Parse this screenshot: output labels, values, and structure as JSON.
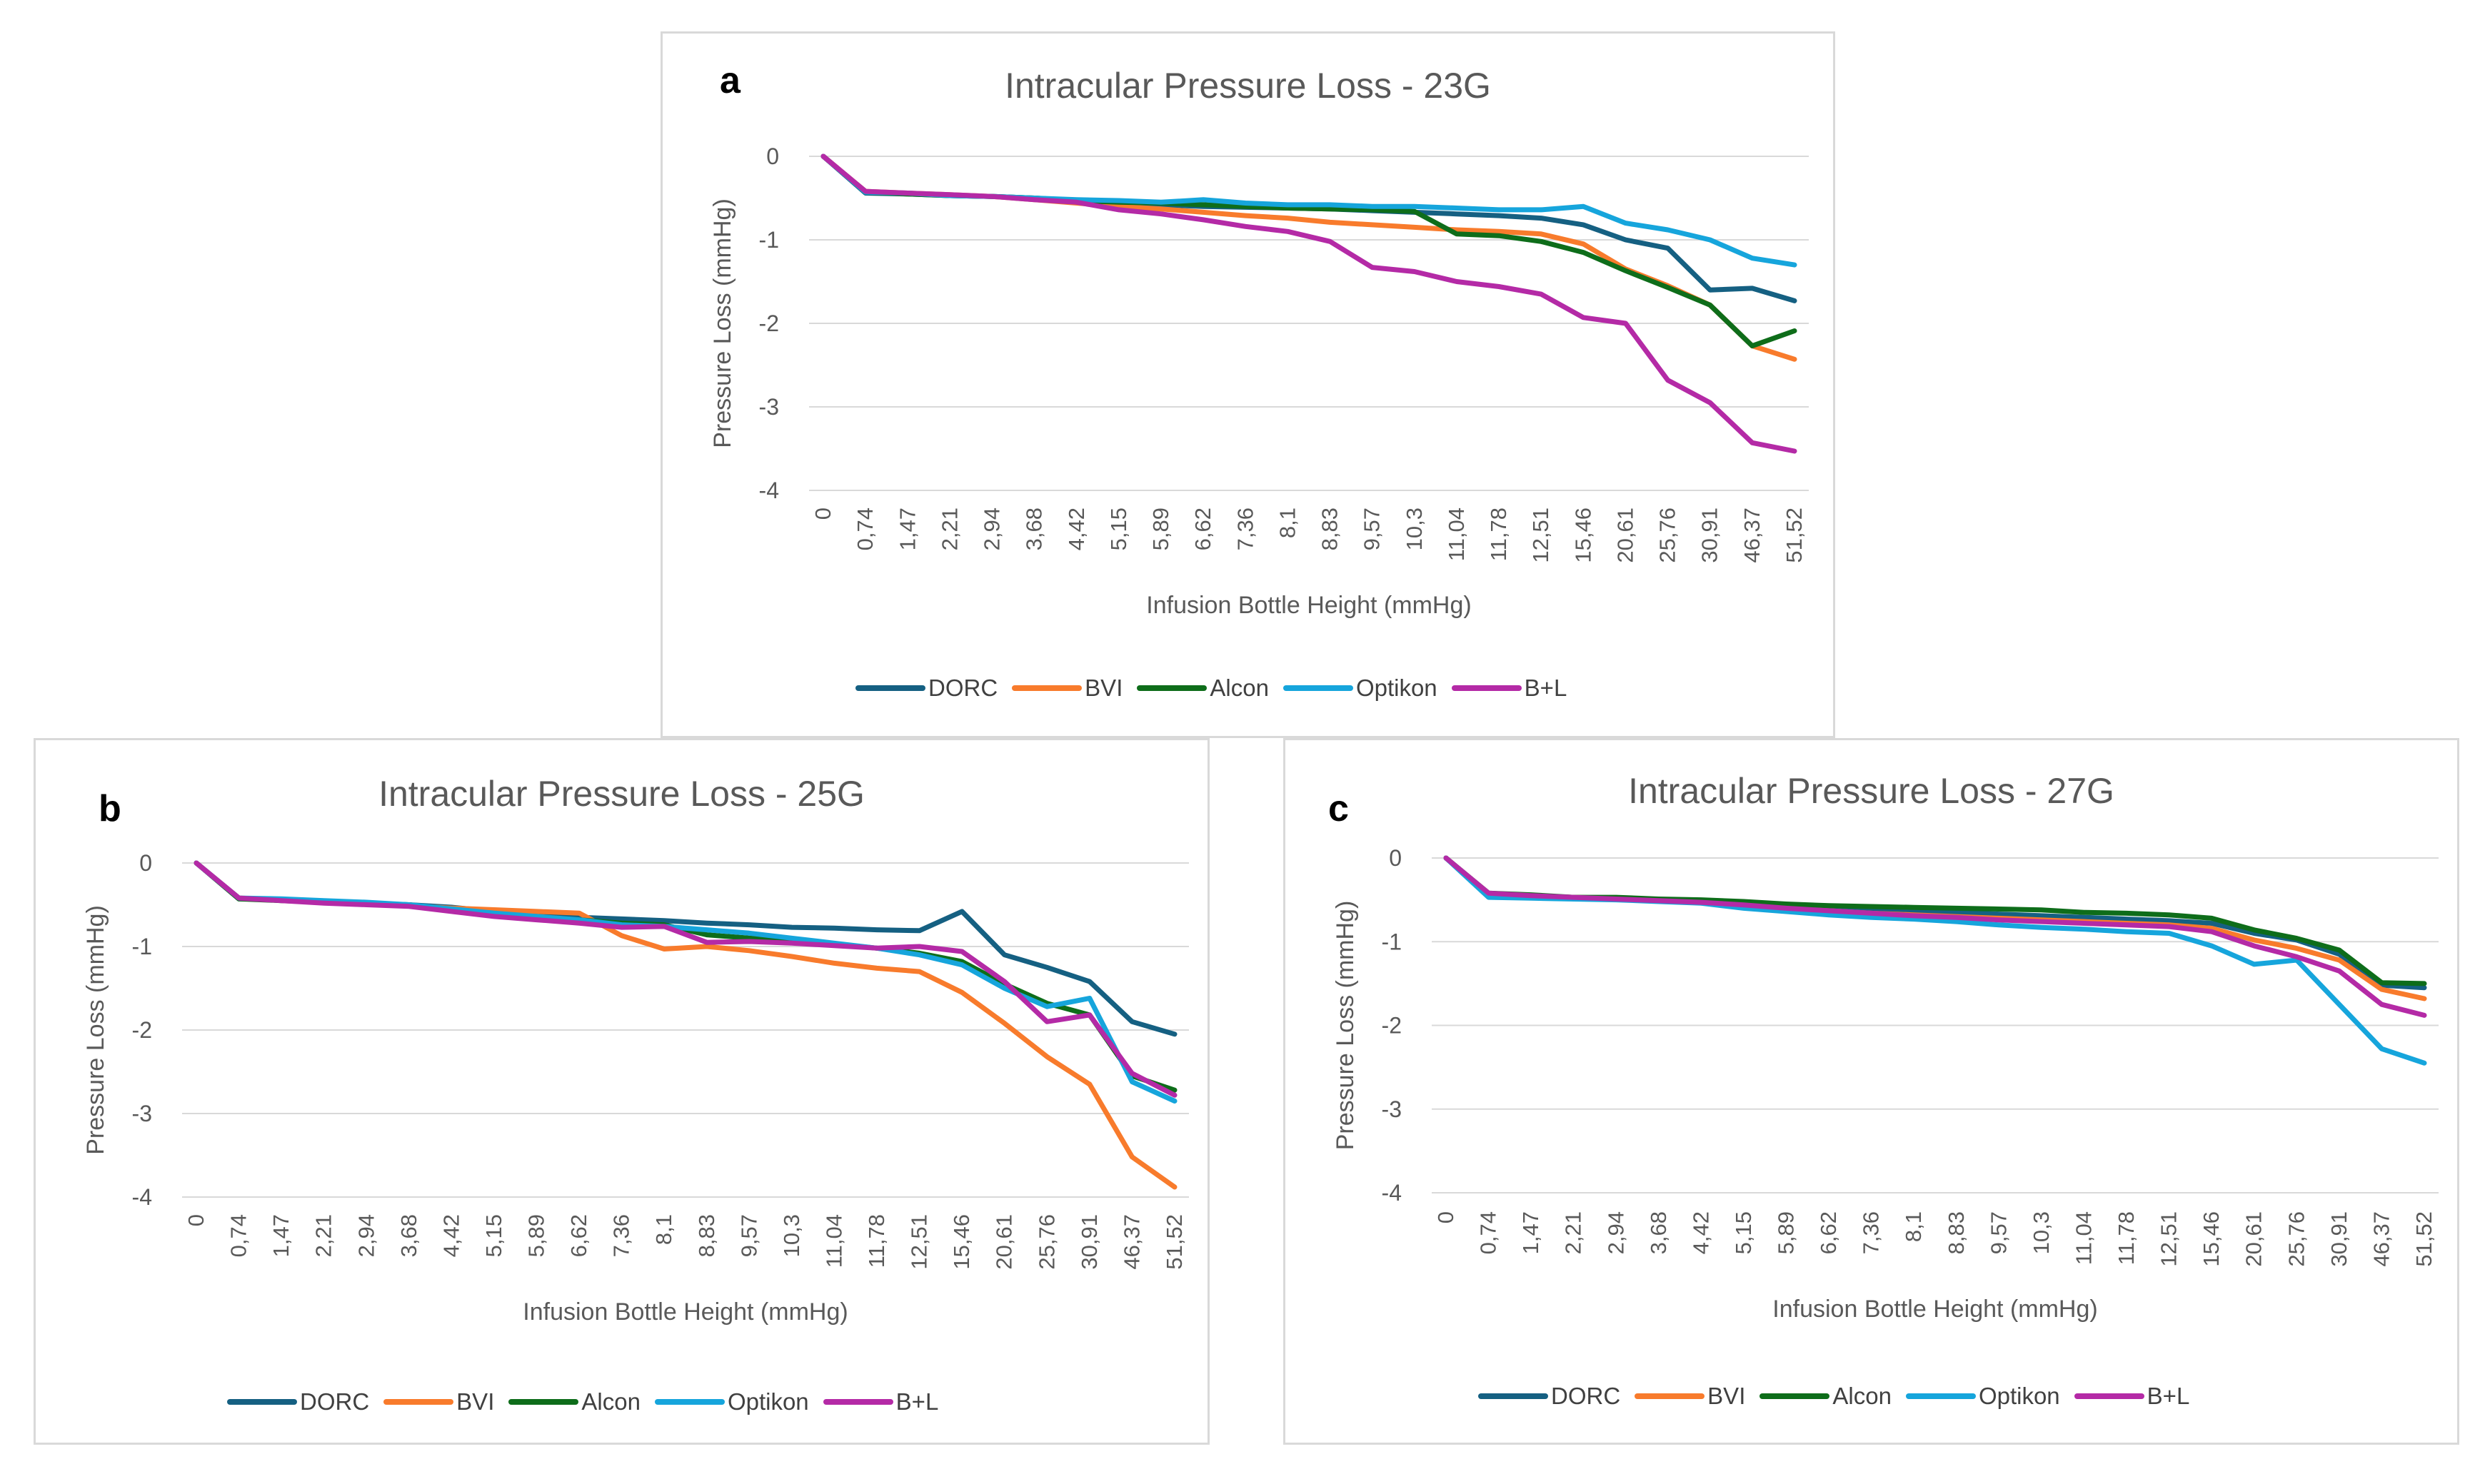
{
  "colors": {
    "DORC": "#156082",
    "BVI": "#f87b2c",
    "Alcon": "#0e6d1a",
    "Optikon": "#16a5dc",
    "B+L": "#b42aa6",
    "grid": "#d9d9d9",
    "axis_text": "#595959"
  },
  "chart_data": [
    {
      "id": "a",
      "type": "line",
      "panel_label": "a",
      "title": "Intracular Pressure Loss - 23G",
      "xlabel": "Infusion Bottle Height (mmHg)",
      "ylabel": "Pressure Loss (mmHg)",
      "ylim": [
        -4,
        0
      ],
      "yticks": [
        0,
        -1,
        -2,
        -3,
        -4
      ],
      "grid": true,
      "legend_position": "bottom",
      "categories": [
        "0",
        "0,74",
        "1,47",
        "2,21",
        "2,94",
        "3,68",
        "4,42",
        "5,15",
        "5,89",
        "6,62",
        "7,36",
        "8,1",
        "8,83",
        "9,57",
        "10,3",
        "11,04",
        "11,78",
        "12,51",
        "15,46",
        "20,61",
        "25,76",
        "30,91",
        "46,37",
        "51,52"
      ],
      "series": [
        {
          "name": "DORC",
          "values": [
            0,
            -0.44,
            -0.45,
            -0.47,
            -0.48,
            -0.5,
            -0.53,
            -0.55,
            -0.58,
            -0.6,
            -0.61,
            -0.62,
            -0.63,
            -0.65,
            -0.67,
            -0.69,
            -0.71,
            -0.74,
            -0.82,
            -1.0,
            -1.1,
            -1.6,
            -1.58,
            -1.73
          ]
        },
        {
          "name": "BVI",
          "values": [
            0,
            -0.42,
            -0.44,
            -0.46,
            -0.48,
            -0.52,
            -0.56,
            -0.6,
            -0.63,
            -0.67,
            -0.71,
            -0.74,
            -0.79,
            -0.82,
            -0.85,
            -0.88,
            -0.9,
            -0.93,
            -1.05,
            -1.35,
            -1.55,
            -1.78,
            -2.27,
            -2.43
          ]
        },
        {
          "name": "Alcon",
          "values": [
            0,
            -0.43,
            -0.45,
            -0.47,
            -0.48,
            -0.5,
            -0.53,
            -0.55,
            -0.56,
            -0.58,
            -0.6,
            -0.62,
            -0.63,
            -0.64,
            -0.66,
            -0.93,
            -0.95,
            -1.02,
            -1.15,
            -1.37,
            -1.57,
            -1.78,
            -2.27,
            -2.09
          ]
        },
        {
          "name": "Optikon",
          "values": [
            0,
            -0.43,
            -0.44,
            -0.47,
            -0.48,
            -0.5,
            -0.52,
            -0.53,
            -0.55,
            -0.52,
            -0.56,
            -0.58,
            -0.58,
            -0.6,
            -0.6,
            -0.62,
            -0.64,
            -0.64,
            -0.6,
            -0.8,
            -0.88,
            -1.0,
            -1.22,
            -1.3
          ]
        },
        {
          "name": "B+L",
          "values": [
            0,
            -0.42,
            -0.44,
            -0.46,
            -0.48,
            -0.52,
            -0.55,
            -0.64,
            -0.69,
            -0.76,
            -0.84,
            -0.9,
            -1.02,
            -1.33,
            -1.38,
            -1.5,
            -1.56,
            -1.65,
            -1.93,
            -2.0,
            -2.68,
            -2.95,
            -3.43,
            -3.53
          ]
        }
      ]
    },
    {
      "id": "b",
      "type": "line",
      "panel_label": "b",
      "title": "Intracular Pressure Loss - 25G",
      "xlabel": "Infusion Bottle Height (mmHg)",
      "ylabel": "Pressure Loss (mmHg)",
      "ylim": [
        -4,
        0
      ],
      "yticks": [
        0,
        -1,
        -2,
        -3,
        -4
      ],
      "grid": true,
      "legend_position": "bottom",
      "categories": [
        "0",
        "0,74",
        "1,47",
        "2,21",
        "2,94",
        "3,68",
        "4,42",
        "5,15",
        "5,89",
        "6,62",
        "7,36",
        "8,1",
        "8,83",
        "9,57",
        "10,3",
        "11,04",
        "11,78",
        "12,51",
        "15,46",
        "20,61",
        "25,76",
        "30,91",
        "46,37",
        "51,52"
      ],
      "series": [
        {
          "name": "DORC",
          "values": [
            0,
            -0.43,
            -0.44,
            -0.46,
            -0.48,
            -0.5,
            -0.53,
            -0.58,
            -0.62,
            -0.65,
            -0.67,
            -0.69,
            -0.72,
            -0.74,
            -0.77,
            -0.78,
            -0.8,
            -0.81,
            -0.58,
            -1.1,
            -1.25,
            -1.42,
            -1.9,
            -2.05
          ]
        },
        {
          "name": "BVI",
          "values": [
            0,
            -0.42,
            -0.44,
            -0.47,
            -0.49,
            -0.51,
            -0.54,
            -0.56,
            -0.58,
            -0.6,
            -0.87,
            -1.03,
            -1.0,
            -1.05,
            -1.12,
            -1.2,
            -1.26,
            -1.3,
            -1.55,
            -1.92,
            -2.32,
            -2.65,
            -3.52,
            -3.88
          ]
        },
        {
          "name": "Alcon",
          "values": [
            0,
            -0.43,
            -0.45,
            -0.47,
            -0.49,
            -0.5,
            -0.56,
            -0.62,
            -0.66,
            -0.68,
            -0.72,
            -0.74,
            -0.86,
            -0.9,
            -0.94,
            -0.97,
            -1.02,
            -1.08,
            -1.18,
            -1.45,
            -1.68,
            -1.82,
            -2.55,
            -2.72
          ]
        },
        {
          "name": "Optikon",
          "values": [
            0,
            -0.42,
            -0.43,
            -0.45,
            -0.47,
            -0.5,
            -0.55,
            -0.6,
            -0.64,
            -0.68,
            -0.74,
            -0.76,
            -0.8,
            -0.84,
            -0.9,
            -0.96,
            -1.02,
            -1.1,
            -1.22,
            -1.5,
            -1.72,
            -1.62,
            -2.62,
            -2.85
          ]
        },
        {
          "name": "B+L",
          "values": [
            0,
            -0.42,
            -0.45,
            -0.48,
            -0.5,
            -0.52,
            -0.58,
            -0.64,
            -0.68,
            -0.72,
            -0.77,
            -0.76,
            -0.95,
            -0.94,
            -0.96,
            -0.99,
            -1.02,
            -1.0,
            -1.06,
            -1.42,
            -1.9,
            -1.82,
            -2.52,
            -2.78
          ]
        }
      ]
    },
    {
      "id": "c",
      "type": "line",
      "panel_label": "c",
      "title": "Intracular Pressure Loss - 27G",
      "xlabel": "Infusion Bottle Height (mmHg)",
      "ylabel": "Pressure Loss (mmHg)",
      "ylim": [
        -4,
        0
      ],
      "yticks": [
        0,
        -1,
        -2,
        -3,
        -4
      ],
      "grid": true,
      "legend_position": "bottom",
      "categories": [
        "0",
        "0,74",
        "1,47",
        "2,21",
        "2,94",
        "3,68",
        "4,42",
        "5,15",
        "5,89",
        "6,62",
        "7,36",
        "8,1",
        "8,83",
        "9,57",
        "10,3",
        "11,04",
        "11,78",
        "12,51",
        "15,46",
        "20,61",
        "25,76",
        "30,91",
        "46,37",
        "51,52"
      ],
      "series": [
        {
          "name": "DORC",
          "values": [
            0,
            -0.44,
            -0.46,
            -0.48,
            -0.49,
            -0.5,
            -0.52,
            -0.55,
            -0.58,
            -0.6,
            -0.62,
            -0.63,
            -0.65,
            -0.67,
            -0.69,
            -0.71,
            -0.73,
            -0.75,
            -0.78,
            -0.9,
            -0.98,
            -1.15,
            -1.52,
            -1.55
          ]
        },
        {
          "name": "BVI",
          "values": [
            0,
            -0.43,
            -0.45,
            -0.47,
            -0.48,
            -0.5,
            -0.52,
            -0.55,
            -0.6,
            -0.63,
            -0.66,
            -0.68,
            -0.7,
            -0.72,
            -0.74,
            -0.76,
            -0.78,
            -0.8,
            -0.84,
            -0.98,
            -1.08,
            -1.22,
            -1.57,
            -1.68
          ]
        },
        {
          "name": "Alcon",
          "values": [
            0,
            -0.42,
            -0.44,
            -0.47,
            -0.47,
            -0.49,
            -0.5,
            -0.52,
            -0.55,
            -0.57,
            -0.58,
            -0.59,
            -0.6,
            -0.61,
            -0.62,
            -0.65,
            -0.66,
            -0.68,
            -0.72,
            -0.86,
            -0.96,
            -1.1,
            -1.49,
            -1.5
          ]
        },
        {
          "name": "Optikon",
          "values": [
            0,
            -0.47,
            -0.48,
            -0.49,
            -0.5,
            -0.52,
            -0.54,
            -0.6,
            -0.64,
            -0.68,
            -0.71,
            -0.73,
            -0.76,
            -0.8,
            -0.83,
            -0.85,
            -0.88,
            -0.9,
            -1.05,
            -1.27,
            -1.22,
            -1.75,
            -2.28,
            -2.45
          ]
        },
        {
          "name": "B+L",
          "values": [
            0,
            -0.42,
            -0.45,
            -0.47,
            -0.49,
            -0.51,
            -0.53,
            -0.56,
            -0.6,
            -0.63,
            -0.66,
            -0.69,
            -0.71,
            -0.74,
            -0.76,
            -0.78,
            -0.8,
            -0.82,
            -0.88,
            -1.05,
            -1.18,
            -1.35,
            -1.75,
            -1.88
          ]
        }
      ]
    }
  ]
}
